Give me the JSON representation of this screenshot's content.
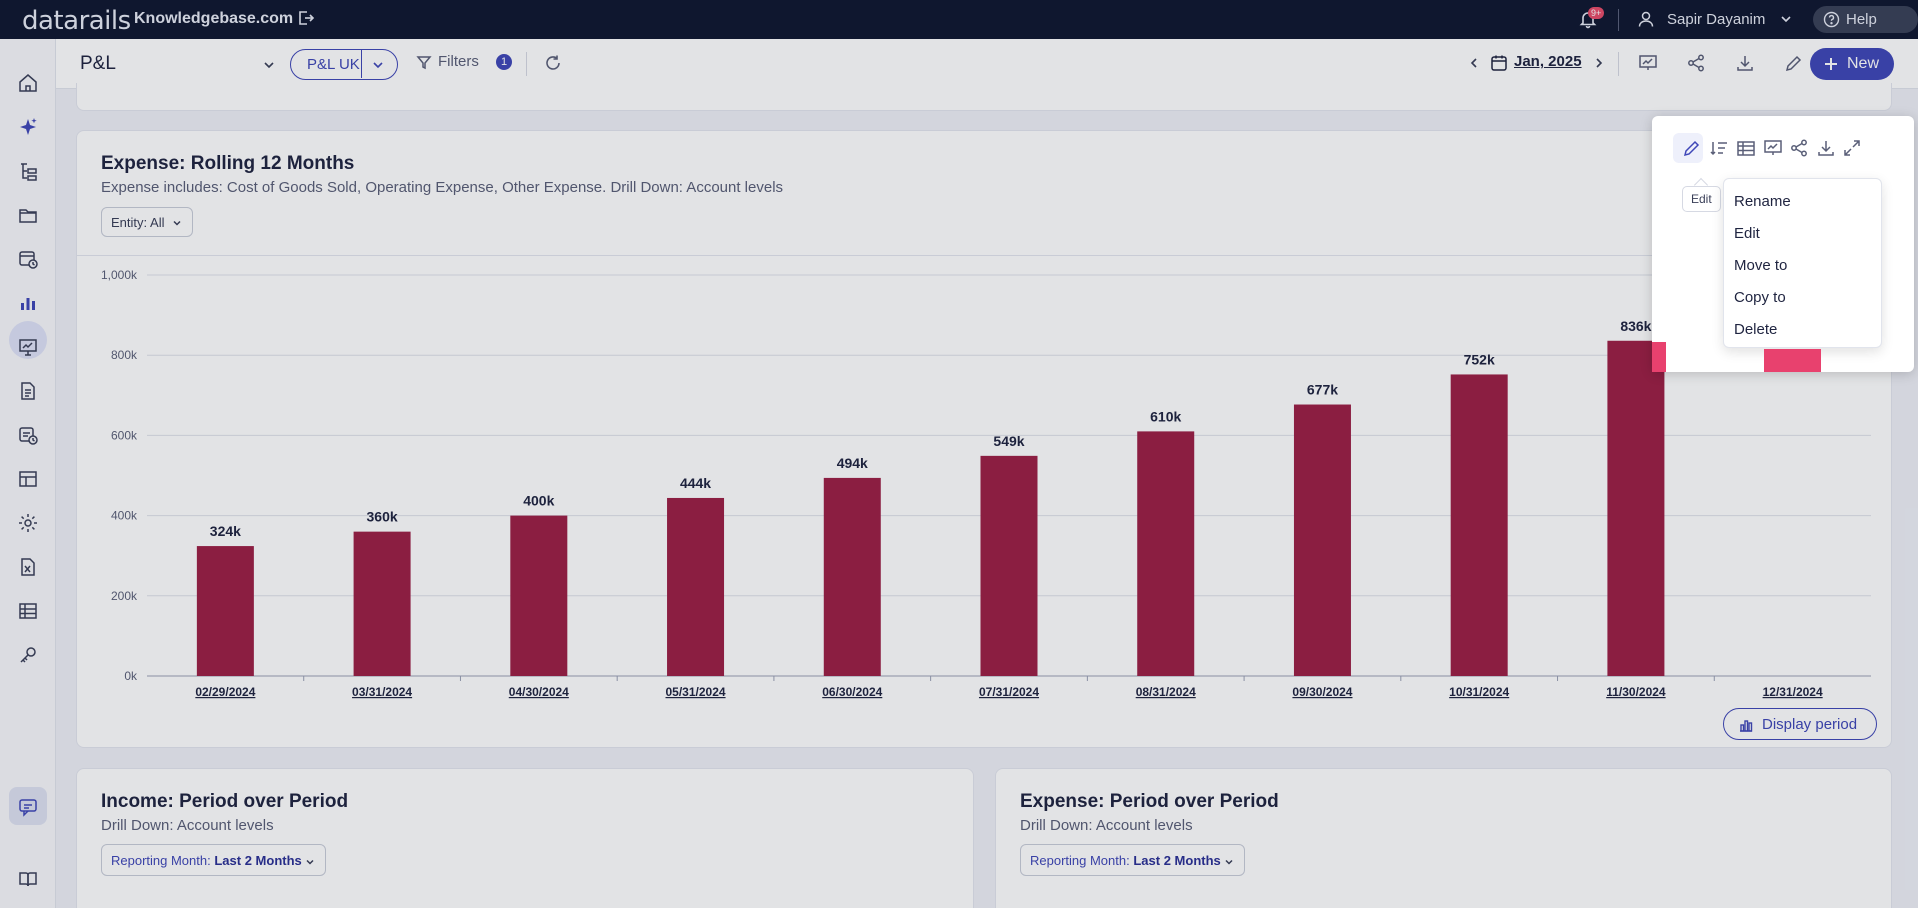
{
  "topbar": {
    "logo": "datarails",
    "company": "Knowledgebase.com",
    "notifications_badge": "9+",
    "user_name": "Sapir Dayanim",
    "help_label": "Help"
  },
  "subheader": {
    "page_title": "P&L",
    "pill_label": "P&L UK",
    "filters_label": "Filters",
    "filters_count": "1",
    "date_label": "Jan, 2025",
    "new_label": "New"
  },
  "main_card": {
    "title": "Expense: Rolling 12 Months",
    "subtitle": "Expense includes: Cost of Goods Sold, Operating Expense, Other Expense. Drill Down: Account levels",
    "entity_filter": "Entity: All",
    "display_period_label": "Display period"
  },
  "chart_data": {
    "type": "bar",
    "title": "Expense: Rolling 12 Months",
    "categories": [
      "02/29/2024",
      "03/31/2024",
      "04/30/2024",
      "05/31/2024",
      "06/30/2024",
      "07/31/2024",
      "08/31/2024",
      "09/30/2024",
      "10/31/2024",
      "11/30/2024",
      "12/31/2024"
    ],
    "values": [
      324,
      360,
      400,
      444,
      494,
      549,
      610,
      677,
      752,
      836,
      0
    ],
    "data_labels": [
      "324k",
      "360k",
      "400k",
      "444k",
      "494k",
      "549k",
      "610k",
      "677k",
      "752k",
      "836k",
      ""
    ],
    "y_ticks": [
      "0k",
      "200k",
      "400k",
      "600k",
      "800k",
      "1,000k"
    ],
    "ylim": [
      0,
      1000
    ],
    "grid": true,
    "bar_color": "#9c1f45"
  },
  "income_card": {
    "title": "Income: Period over Period",
    "subtitle": "Drill Down: Account levels",
    "reporting_label": "Reporting Month:",
    "reporting_value": "Last 2 Months"
  },
  "expense_card": {
    "title": "Expense: Period over Period",
    "subtitle": "Drill Down: Account levels",
    "reporting_label": "Reporting Month:",
    "reporting_value": "Last 2 Months"
  },
  "popup": {
    "tooltip": "Edit",
    "menu": [
      "Rename",
      "Edit",
      "Move to",
      "Copy to",
      "Delete"
    ]
  }
}
